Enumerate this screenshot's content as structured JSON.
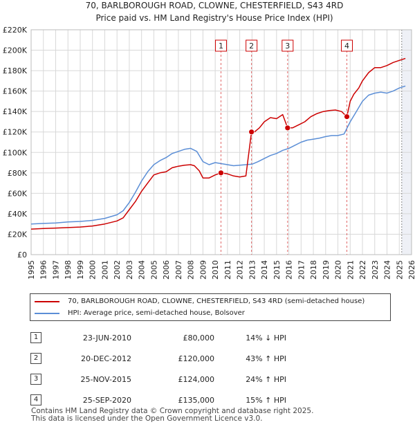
{
  "chart_data": {
    "type": "line",
    "title": "70, BARLBOROUGH ROAD, CLOWNE, CHESTERFIELD, S43 4RD",
    "subtitle": "Price paid vs. HM Land Registry's House Price Index (HPI)",
    "xlim": [
      1995,
      2026
    ],
    "ylim": [
      0,
      220000
    ],
    "x_ticks": [
      1995,
      1996,
      1997,
      1998,
      1999,
      2000,
      2001,
      2002,
      2003,
      2004,
      2005,
      2006,
      2007,
      2008,
      2009,
      2010,
      2011,
      2012,
      2013,
      2014,
      2015,
      2016,
      2017,
      2018,
      2019,
      2020,
      2021,
      2022,
      2023,
      2024,
      2025,
      2026
    ],
    "y_ticks": [
      {
        "value": 0,
        "label": "£0"
      },
      {
        "value": 20000,
        "label": "£20K"
      },
      {
        "value": 40000,
        "label": "£40K"
      },
      {
        "value": 60000,
        "label": "£60K"
      },
      {
        "value": 80000,
        "label": "£80K"
      },
      {
        "value": 100000,
        "label": "£100K"
      },
      {
        "value": 120000,
        "label": "£120K"
      },
      {
        "value": 140000,
        "label": "£140K"
      },
      {
        "value": 160000,
        "label": "£160K"
      },
      {
        "value": 180000,
        "label": "£180K"
      },
      {
        "value": 200000,
        "label": "£200K"
      },
      {
        "value": 220000,
        "label": "£220K"
      }
    ],
    "grid": true,
    "series": [
      {
        "name": "70, BARLBOROUGH ROAD, CLOWNE, CHESTERFIELD, S43 4RD (semi-detached house)",
        "color": "#cc0000",
        "x": [
          1995,
          1996,
          1997,
          1998,
          1999,
          2000,
          2001,
          2002,
          2002.5,
          2003,
          2003.5,
          2004,
          2004.5,
          2005,
          2005.5,
          2006,
          2006.5,
          2007,
          2007.5,
          2008,
          2008.3,
          2008.7,
          2009,
          2009.5,
          2010,
          2010.47,
          2011,
          2011.5,
          2012,
          2012.5,
          2012.96,
          2013.2,
          2013.6,
          2014,
          2014.5,
          2015,
          2015.5,
          2015.9,
          2016.3,
          2016.8,
          2017.3,
          2017.8,
          2018.3,
          2018.8,
          2019.3,
          2019.8,
          2020.3,
          2020.73,
          2021,
          2021.3,
          2021.7,
          2022,
          2022.5,
          2023,
          2023.5,
          2024,
          2024.5,
          2025,
          2025.5
        ],
        "values": [
          25000,
          25500,
          26000,
          26500,
          27000,
          28000,
          30000,
          33000,
          36000,
          44000,
          52000,
          62000,
          70000,
          78000,
          80000,
          81000,
          85000,
          86500,
          87500,
          88000,
          87000,
          82000,
          75000,
          75000,
          78000,
          80000,
          79000,
          77000,
          76000,
          77000,
          120000,
          120000,
          124000,
          130000,
          134000,
          133000,
          137000,
          124000,
          124000,
          127000,
          130000,
          135000,
          138000,
          140000,
          141000,
          141500,
          140000,
          135000,
          150000,
          157000,
          163000,
          170000,
          178000,
          183000,
          183000,
          185000,
          188000,
          190000,
          192000
        ]
      },
      {
        "name": "HPI: Average price, semi-detached house, Bolsover",
        "color": "#5b8ed6",
        "x": [
          1995,
          1996,
          1997,
          1998,
          1999,
          2000,
          2001,
          2002,
          2002.5,
          2003,
          2003.5,
          2004,
          2004.5,
          2005,
          2005.5,
          2006,
          2006.5,
          2007,
          2007.5,
          2008,
          2008.5,
          2009,
          2009.5,
          2010,
          2010.5,
          2011,
          2011.5,
          2012,
          2012.5,
          2013,
          2013.5,
          2014,
          2014.5,
          2015,
          2015.5,
          2016,
          2016.5,
          2017,
          2017.5,
          2018,
          2018.5,
          2019,
          2019.5,
          2020,
          2020.5,
          2021,
          2021.5,
          2022,
          2022.5,
          2023,
          2023.5,
          2024,
          2024.5,
          2025,
          2025.5
        ],
        "values": [
          30000,
          30500,
          31000,
          32000,
          32500,
          33500,
          35500,
          39000,
          43000,
          51000,
          61000,
          72000,
          81000,
          88000,
          92000,
          95000,
          99000,
          101000,
          103000,
          104000,
          101000,
          91000,
          88000,
          90000,
          89000,
          88000,
          87000,
          87500,
          88000,
          88500,
          91000,
          94000,
          97000,
          99000,
          102000,
          104000,
          107000,
          110000,
          112000,
          113000,
          114000,
          115500,
          116500,
          116500,
          118000,
          130000,
          140000,
          150000,
          156000,
          158000,
          159000,
          158000,
          160000,
          163000,
          165000
        ]
      }
    ],
    "sales": [
      {
        "num": "1",
        "date": "23-JUN-2010",
        "price": "£80,000",
        "hpi": "14% ↓ HPI",
        "x": 2010.47,
        "value": 80000
      },
      {
        "num": "2",
        "date": "20-DEC-2012",
        "price": "£120,000",
        "hpi": "43% ↑ HPI",
        "x": 2012.96,
        "value": 120000
      },
      {
        "num": "3",
        "date": "25-NOV-2015",
        "price": "£124,000",
        "hpi": "24% ↑ HPI",
        "x": 2015.9,
        "value": 124000
      },
      {
        "num": "4",
        "date": "25-SEP-2020",
        "price": "£135,000",
        "hpi": "15% ↑ HPI",
        "x": 2020.73,
        "value": 135000
      }
    ],
    "forecast_start": 2025.2
  },
  "legend": {
    "property_label": "70, BARLBOROUGH ROAD, CLOWNE, CHESTERFIELD, S43 4RD (semi-detached house)",
    "hpi_label": "HPI: Average price, semi-detached house, Bolsover",
    "property_color": "#cc0000",
    "hpi_color": "#5b8ed6"
  },
  "footer": {
    "line1": "Contains HM Land Registry data © Crown copyright and database right 2025.",
    "line2": "This data is licensed under the Open Government Licence v3.0."
  }
}
